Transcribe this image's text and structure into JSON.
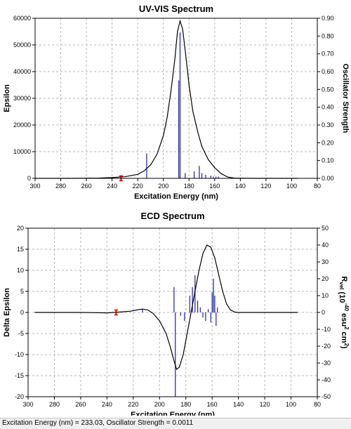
{
  "chart_data": [
    {
      "type": "line",
      "title": "UV-VIS Spectrum",
      "xlabel": "Excitation Energy (nm)",
      "ylabel": "Epsilon",
      "ylabel_right": "Oscillator Strength",
      "xlim": [
        300,
        80
      ],
      "ylim": [
        0,
        60000
      ],
      "ylim_right": [
        0,
        0.9
      ],
      "grid": true,
      "x_ticks": [
        "300",
        "280",
        "260",
        "240",
        "220",
        "200",
        "180",
        "160",
        "140",
        "120",
        "100",
        "80"
      ],
      "y_ticks": [
        "0",
        "10000",
        "20000",
        "30000",
        "40000",
        "50000",
        "60000"
      ],
      "y_ticks_right": [
        "0.00",
        "0.10",
        "0.20",
        "0.30",
        "0.40",
        "0.50",
        "0.60",
        "0.70",
        "0.80",
        "0.90"
      ],
      "curve": {
        "x": [
          300,
          270,
          250,
          240,
          230,
          220,
          215,
          210,
          205,
          200,
          197,
          194,
          191,
          189,
          187,
          185,
          183,
          180,
          177,
          173,
          170,
          165,
          160,
          155,
          150,
          145,
          130,
          110,
          95
        ],
        "y": [
          0,
          0,
          100,
          300,
          600,
          1500,
          2800,
          5000,
          9000,
          16000,
          23000,
          33000,
          45000,
          55000,
          59000,
          56000,
          48000,
          35000,
          25000,
          17000,
          12000,
          7000,
          4000,
          1800,
          500,
          100,
          0,
          0,
          0
        ]
      },
      "sticks": {
        "x": [
          233,
          213,
          188,
          187,
          183,
          176,
          172,
          170,
          167,
          163,
          161,
          159,
          157
        ],
        "strength": [
          0.0011,
          0.14,
          0.55,
          0.82,
          0.03,
          0.04,
          0.07,
          0.03,
          0.02,
          0.015,
          0.01,
          0.01,
          0.01
        ]
      },
      "marker": {
        "x": 233.03,
        "y": 0
      }
    },
    {
      "type": "line",
      "title": "ECD Spectrum",
      "xlabel": "Excitation Energy (nm)",
      "ylabel": "Delta Epsilon",
      "ylabel_right_main": "R",
      "ylabel_right_sub": "vel",
      "ylabel_right_mid": " (10",
      "ylabel_right_exp": "-40",
      "ylabel_right_end": " esu",
      "ylabel_right_exp2": "2",
      "ylabel_right_tail": " cm",
      "ylabel_right_exp3": "2",
      "ylabel_right_close": ")",
      "xlim": [
        300,
        80
      ],
      "ylim": [
        -20,
        20
      ],
      "ylim_right": [
        -50,
        50
      ],
      "grid": true,
      "x_ticks": [
        "300",
        "280",
        "260",
        "240",
        "220",
        "200",
        "180",
        "160",
        "140",
        "120",
        "100",
        "80"
      ],
      "y_ticks": [
        "-20",
        "-15",
        "-10",
        "-5",
        "0",
        "5",
        "10",
        "15",
        "20"
      ],
      "y_ticks_right": [
        "-50",
        "-40",
        "-30",
        "-20",
        "-10",
        "0",
        "10",
        "20",
        "30",
        "40",
        "50"
      ],
      "curve": {
        "x": [
          295,
          260,
          240,
          230,
          222,
          217,
          213,
          209,
          205,
          200,
          195,
          192,
          189,
          187,
          185,
          182,
          179,
          176,
          173,
          170,
          167,
          164,
          161,
          158,
          155,
          152,
          149,
          146,
          143,
          140,
          120,
          95
        ],
        "y": [
          0,
          0,
          -0.1,
          0.1,
          0.3,
          0.6,
          0.8,
          0.6,
          -0.2,
          -2,
          -5,
          -8,
          -11.5,
          -13.5,
          -13,
          -10,
          -5,
          0,
          5,
          10,
          14,
          16,
          15.5,
          13,
          9,
          5,
          2,
          0.6,
          0.1,
          0,
          0,
          0
        ]
      },
      "sticks": {
        "x": [
          233,
          213,
          189,
          188,
          184,
          181,
          177,
          175,
          173,
          171,
          169,
          167,
          165,
          163,
          161,
          160,
          159,
          158,
          157,
          156
        ],
        "rvel": [
          0.5,
          2,
          15,
          -50,
          -2,
          -5,
          10,
          15,
          22,
          7,
          3,
          -3,
          -5,
          2,
          -6,
          12,
          20,
          10,
          -8,
          3
        ]
      },
      "marker": {
        "x": 233.03,
        "y": 0
      }
    }
  ],
  "status": {
    "text": "Excitation Energy (nm) = 233.03, Oscillator Strength = 0.0011"
  },
  "colors": {
    "curve": "#000000",
    "stick": "#1e1ea0",
    "marker": "#d00000",
    "grid": "#b4b4b4",
    "frame": "#000000"
  }
}
